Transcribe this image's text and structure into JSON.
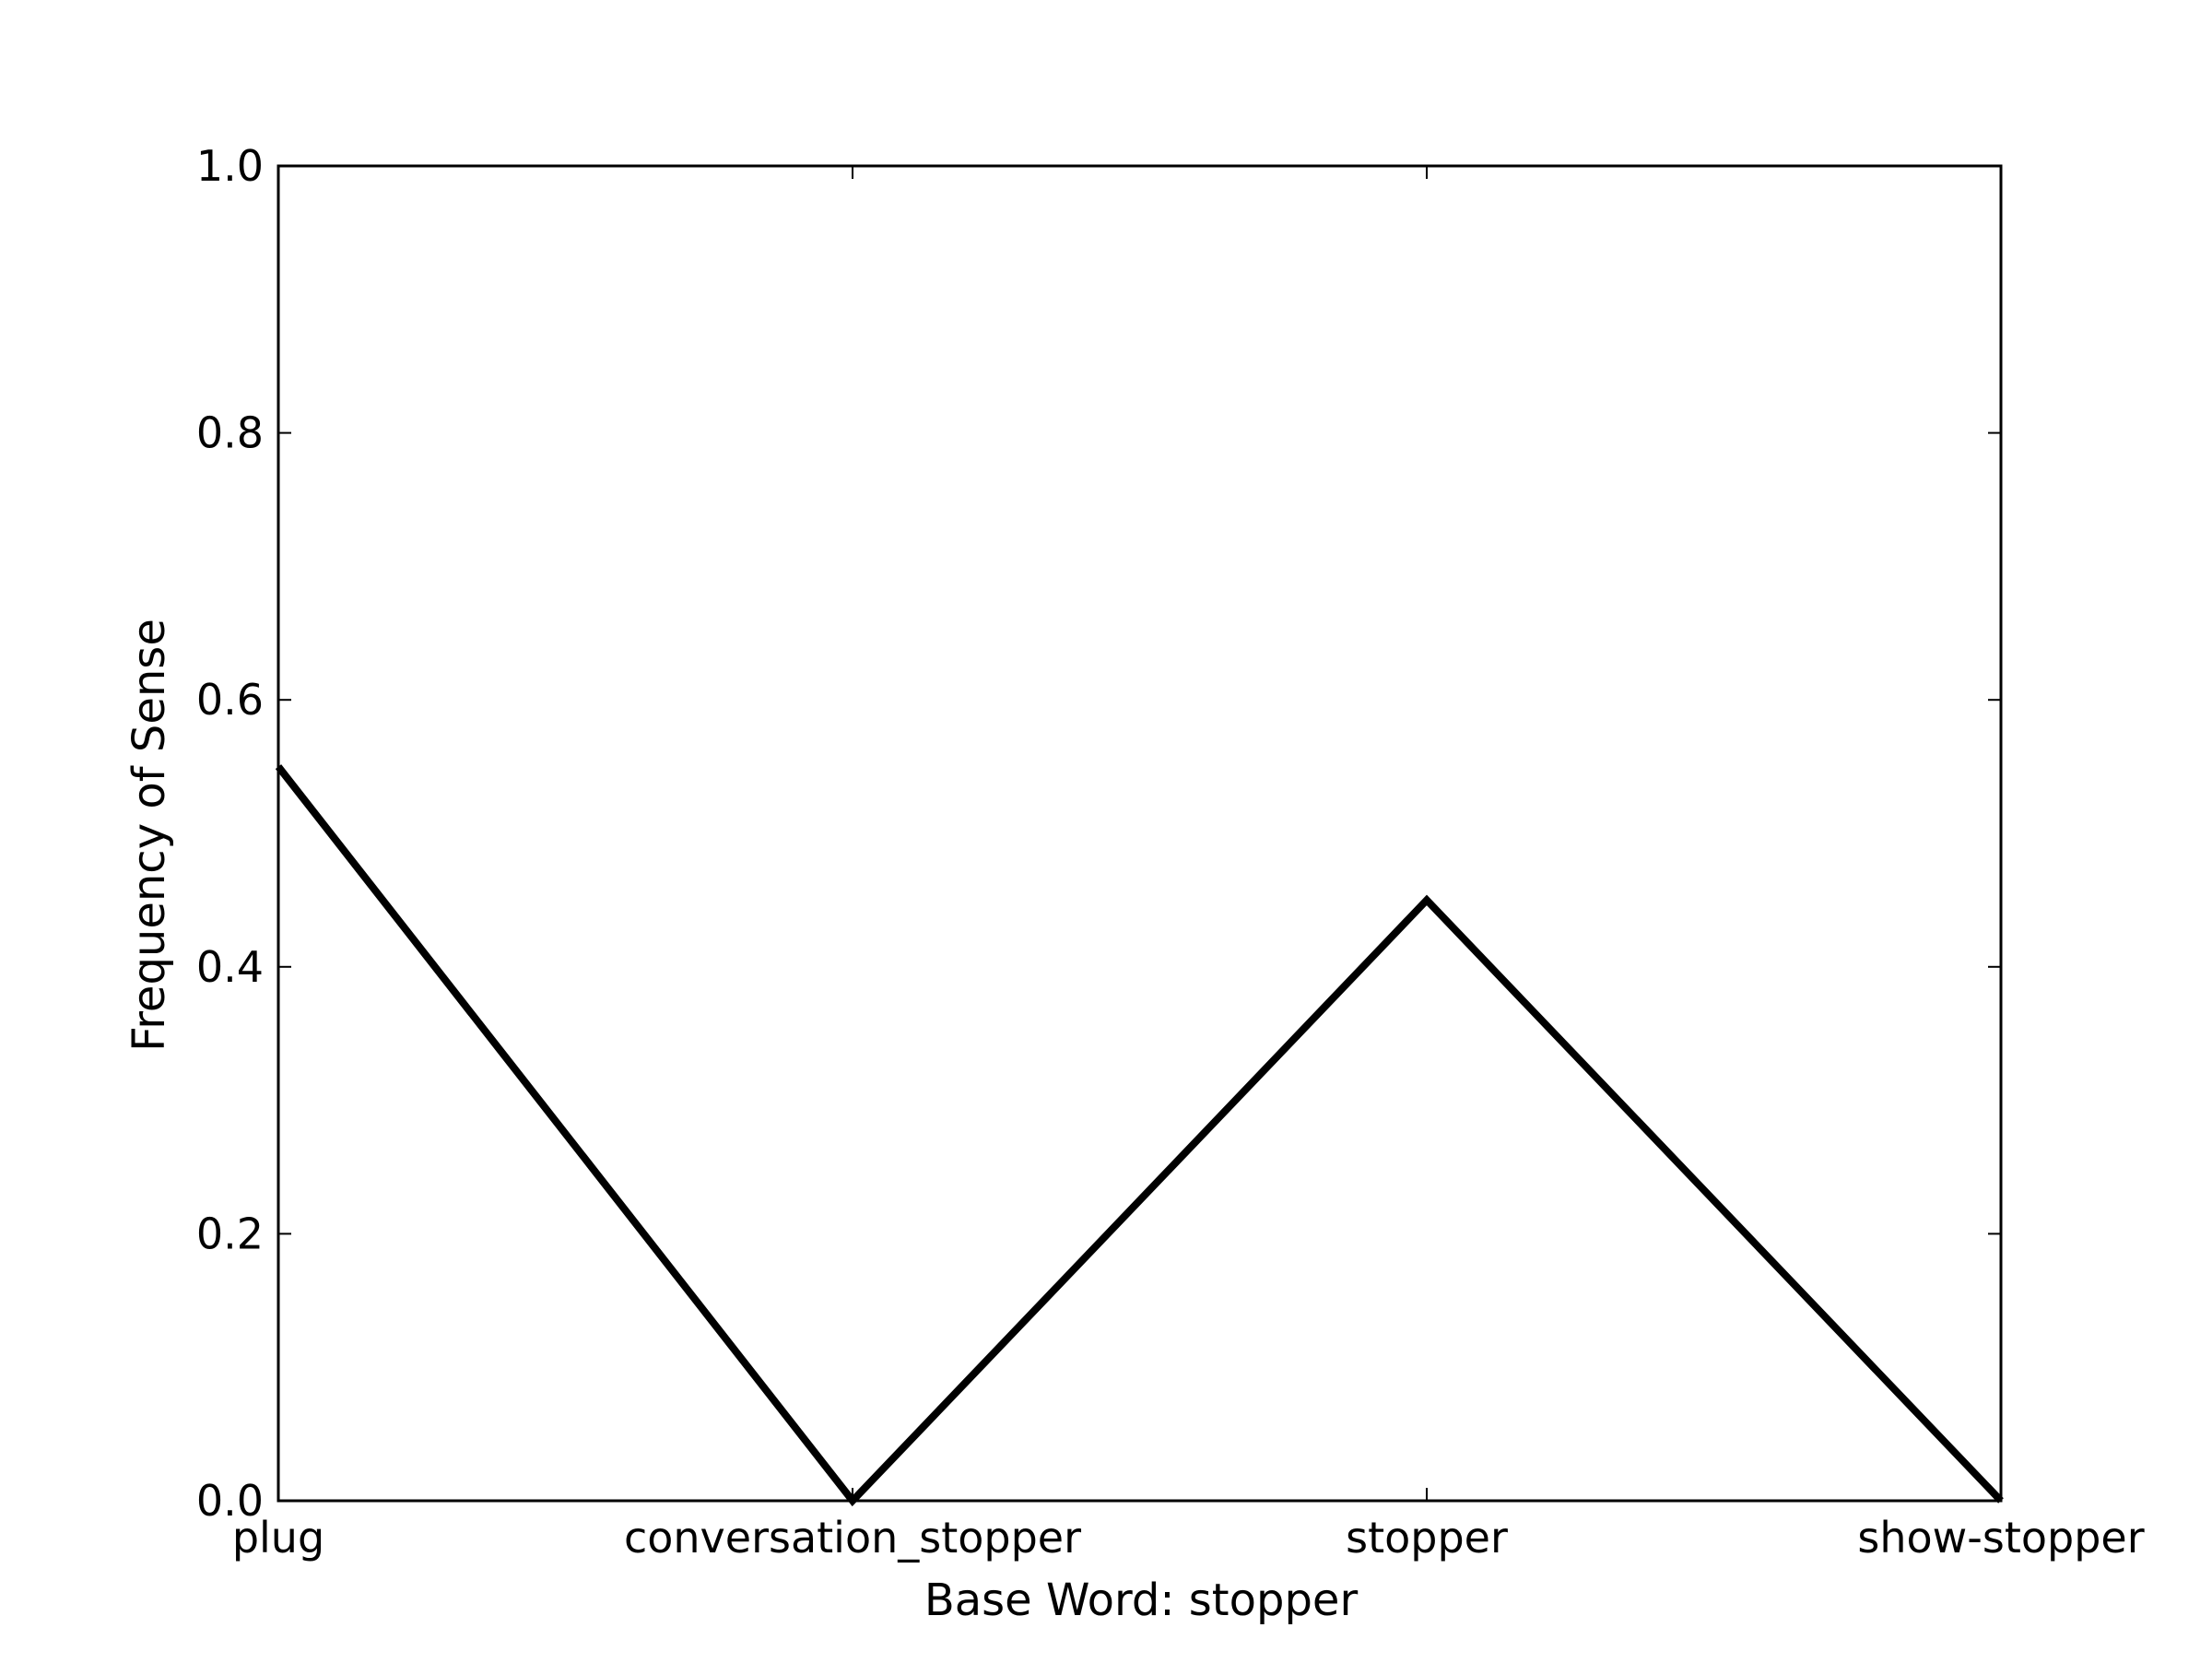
{
  "chart_data": {
    "type": "line",
    "categories": [
      "plug",
      "conversation_stopper",
      "stopper",
      "show-stopper"
    ],
    "series": [
      {
        "values": [
          0.55,
          0.0,
          0.45,
          0.0
        ],
        "color": "#000000"
      }
    ],
    "title": "",
    "xlabel": "Base Word: stopper",
    "ylabel": "Frequency of Sense",
    "ylim": [
      0.0,
      1.0
    ],
    "yticks": [
      "0.0",
      "0.2",
      "0.4",
      "0.6",
      "0.8",
      "1.0"
    ],
    "grid": false,
    "legend": "none"
  }
}
